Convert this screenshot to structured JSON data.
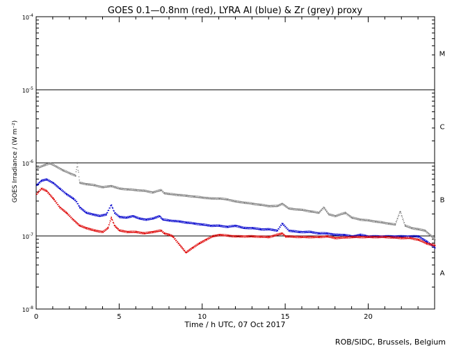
{
  "chart_data": {
    "type": "scatter",
    "title": "GOES 0.1—0.8nm (red), LYRA Al (blue) & Zr (grey) proxy",
    "xlabel": "Time / h UTC, 07 Oct 2017",
    "ylabel": "GOES Irradiance / (W m⁻²)",
    "credit": "ROB/SIDC, Brussels, Belgium",
    "xlim": [
      0,
      24
    ],
    "ylim": [
      1e-08,
      0.0001
    ],
    "yscale": "log",
    "x_ticks": [
      0,
      5,
      10,
      15,
      20
    ],
    "y_ticks": [
      {
        "value": 0.0001,
        "base": "10",
        "exp": "-4"
      },
      {
        "value": 1e-05,
        "base": "10",
        "exp": "-5"
      },
      {
        "value": 1e-06,
        "base": "10",
        "exp": "-6"
      },
      {
        "value": 1e-07,
        "base": "10",
        "exp": "-7"
      },
      {
        "value": 1e-08,
        "base": "10",
        "exp": "-8"
      }
    ],
    "flare_lines": [
      1e-05,
      1e-06,
      1e-07
    ],
    "flare_classes": [
      {
        "label": "M",
        "value": 3.16e-05
      },
      {
        "label": "C",
        "value": 3.16e-06
      },
      {
        "label": "B",
        "value": 3.16e-07
      },
      {
        "label": "A",
        "value": 3.16e-08
      }
    ],
    "series": [
      {
        "color": "#808080",
        "x": [
          0.0,
          0.5,
          0.8,
          1.2,
          1.6,
          2.0,
          2.35,
          2.45,
          2.6,
          3.0,
          3.5,
          4.0,
          4.5,
          5.0,
          5.5,
          6.0,
          6.5,
          7.0,
          7.5,
          7.7,
          8.0,
          8.5,
          9.0,
          9.5,
          10.0,
          10.5,
          11.0,
          11.5,
          12.0,
          12.5,
          13.0,
          13.5,
          14.0,
          14.5,
          14.8,
          15.2,
          16.0,
          16.5,
          17.0,
          17.3,
          17.6,
          18.0,
          18.6,
          19.0,
          19.5,
          20.0,
          20.4,
          20.8,
          21.2,
          21.6,
          21.9,
          22.2,
          22.6,
          23.0,
          23.4,
          23.8,
          24.0
        ],
        "y": [
          8.5e-07,
          9.5e-07,
          1e-06,
          9e-07,
          8e-07,
          7.3e-07,
          6.8e-07,
          1e-06,
          5.4e-07,
          5.2e-07,
          5e-07,
          4.7e-07,
          4.9e-07,
          4.5e-07,
          4.4e-07,
          4.3e-07,
          4.2e-07,
          4e-07,
          4.3e-07,
          3.9e-07,
          3.8e-07,
          3.7e-07,
          3.6e-07,
          3.5e-07,
          3.4e-07,
          3.3e-07,
          3.3e-07,
          3.2e-07,
          3e-07,
          2.9e-07,
          2.8e-07,
          2.7e-07,
          2.6e-07,
          2.6e-07,
          2.8e-07,
          2.4e-07,
          2.3e-07,
          2.2e-07,
          2.1e-07,
          2.5e-07,
          2e-07,
          1.9e-07,
          2.1e-07,
          1.8e-07,
          1.7e-07,
          1.65e-07,
          1.6e-07,
          1.55e-07,
          1.5e-07,
          1.45e-07,
          2.2e-07,
          1.4e-07,
          1.3e-07,
          1.25e-07,
          1.2e-07,
          1e-07,
          9e-08
        ]
      },
      {
        "color": "#0000cc",
        "x": [
          0.0,
          0.3,
          0.6,
          1.0,
          1.4,
          1.8,
          2.2,
          2.4,
          2.6,
          3.0,
          3.4,
          3.8,
          4.2,
          4.5,
          4.7,
          5.0,
          5.4,
          5.8,
          6.2,
          6.6,
          7.0,
          7.4,
          7.6,
          8.0,
          8.6,
          9.0,
          9.5,
          10.0,
          10.5,
          11.0,
          11.5,
          12.0,
          12.5,
          13.0,
          13.5,
          14.0,
          14.5,
          14.8,
          15.2,
          15.8,
          16.5,
          17.0,
          17.5,
          18.0,
          18.5,
          19.0,
          19.5,
          20.0,
          20.5,
          21.0,
          21.5,
          22.0,
          22.5,
          23.0,
          23.5,
          24.0
        ],
        "y": [
          5e-07,
          5.8e-07,
          6e-07,
          5.4e-07,
          4.5e-07,
          3.8e-07,
          3.3e-07,
          3e-07,
          2.5e-07,
          2.1e-07,
          2e-07,
          1.9e-07,
          2e-07,
          2.7e-07,
          2.1e-07,
          1.85e-07,
          1.8e-07,
          1.9e-07,
          1.75e-07,
          1.7e-07,
          1.75e-07,
          1.9e-07,
          1.7e-07,
          1.65e-07,
          1.6e-07,
          1.55e-07,
          1.5e-07,
          1.45e-07,
          1.4e-07,
          1.4e-07,
          1.35e-07,
          1.4e-07,
          1.3e-07,
          1.3e-07,
          1.25e-07,
          1.25e-07,
          1.2e-07,
          1.5e-07,
          1.2e-07,
          1.15e-07,
          1.15e-07,
          1.1e-07,
          1.1e-07,
          1.05e-07,
          1.05e-07,
          1e-07,
          1.05e-07,
          1e-07,
          1e-07,
          1e-07,
          1e-07,
          1e-07,
          1e-07,
          1e-07,
          8.5e-08,
          7e-08
        ]
      },
      {
        "color": "#dd0000",
        "x": [
          0.0,
          0.3,
          0.6,
          1.0,
          1.4,
          1.8,
          2.2,
          2.6,
          3.0,
          3.5,
          4.0,
          4.3,
          4.5,
          4.7,
          5.0,
          5.5,
          6.0,
          6.5,
          7.0,
          7.5,
          7.7,
          8.0,
          8.2,
          9.0,
          9.4,
          9.8,
          10.2,
          10.6,
          11.0,
          12.0,
          13.0,
          14.0,
          14.8,
          15.0,
          16.0,
          17.0,
          17.5,
          18.0,
          19.0,
          20.0,
          21.0,
          22.0,
          22.5,
          23.0,
          23.5,
          24.0
        ],
        "y": [
          3.8e-07,
          4.5e-07,
          4.2e-07,
          3.3e-07,
          2.5e-07,
          2.1e-07,
          1.7e-07,
          1.4e-07,
          1.3e-07,
          1.2e-07,
          1.15e-07,
          1.3e-07,
          1.8e-07,
          1.4e-07,
          1.2e-07,
          1.15e-07,
          1.15e-07,
          1.1e-07,
          1.15e-07,
          1.2e-07,
          1.1e-07,
          1.05e-07,
          1e-07,
          6e-08,
          7e-08,
          8e-08,
          9e-08,
          1e-07,
          1.05e-07,
          1e-07,
          1e-07,
          9.8e-08,
          1.1e-07,
          1e-07,
          9.8e-08,
          9.8e-08,
          1e-07,
          9.5e-08,
          9.8e-08,
          9.8e-08,
          9.8e-08,
          9.5e-08,
          9.5e-08,
          9e-08,
          8e-08,
          7.5e-08
        ]
      }
    ]
  }
}
